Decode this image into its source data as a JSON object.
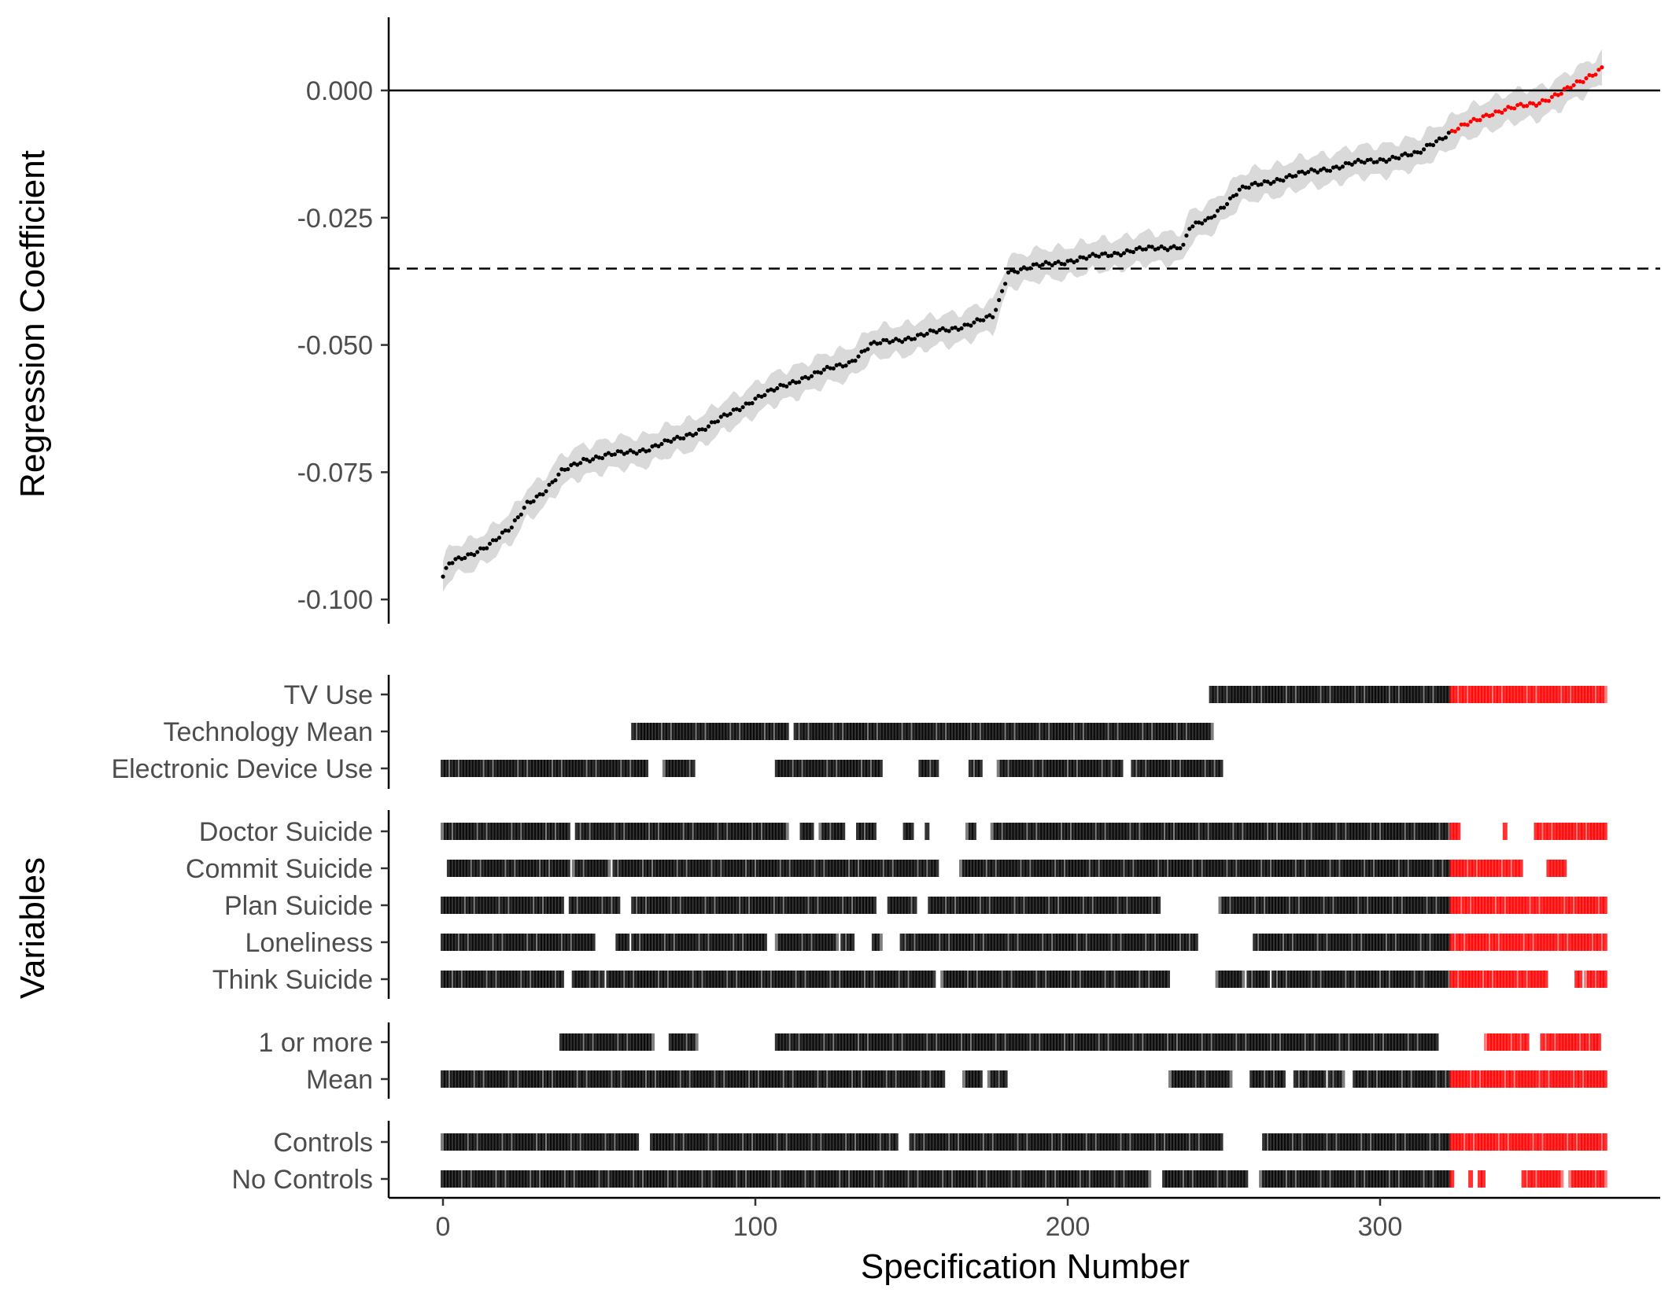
{
  "chart_data": {
    "type": "scatter",
    "title": "",
    "xlabel": "Specification Number",
    "x_ticks": [
      0,
      100,
      200,
      300
    ],
    "xlim": [
      -18,
      391
    ],
    "n_specifications": 372,
    "coefficient_panel": {
      "ylabel": "Regression Coefficient",
      "y_ticks": [
        "0.000",
        "-0.025",
        "-0.050",
        "-0.075",
        "-0.100"
      ],
      "y_tick_values": [
        0.0,
        -0.025,
        -0.05,
        -0.075,
        -0.1
      ],
      "ylim": [
        -0.105,
        0.014
      ],
      "reference_line_solid": 0.0,
      "reference_line_dashed": -0.035,
      "ci_halfwidth_approx": 0.003,
      "curve_knots": [
        [
          0,
          -0.0955
        ],
        [
          2,
          -0.093
        ],
        [
          8,
          -0.0915
        ],
        [
          15,
          -0.089
        ],
        [
          22,
          -0.086
        ],
        [
          27,
          -0.081
        ],
        [
          33,
          -0.0785
        ],
        [
          38,
          -0.075
        ],
        [
          45,
          -0.0725
        ],
        [
          55,
          -0.0715
        ],
        [
          65,
          -0.0705
        ],
        [
          75,
          -0.0685
        ],
        [
          85,
          -0.066
        ],
        [
          100,
          -0.0605
        ],
        [
          115,
          -0.0565
        ],
        [
          130,
          -0.0535
        ],
        [
          137,
          -0.05
        ],
        [
          150,
          -0.0485
        ],
        [
          165,
          -0.0465
        ],
        [
          176,
          -0.0445
        ],
        [
          178,
          -0.0415
        ],
        [
          181,
          -0.0355
        ],
        [
          200,
          -0.0335
        ],
        [
          220,
          -0.0315
        ],
        [
          237,
          -0.0305
        ],
        [
          239,
          -0.027
        ],
        [
          245,
          -0.0255
        ],
        [
          250,
          -0.0225
        ],
        [
          255,
          -0.0195
        ],
        [
          270,
          -0.017
        ],
        [
          290,
          -0.0145
        ],
        [
          312,
          -0.0125
        ],
        [
          316,
          -0.0105
        ],
        [
          322,
          -0.0085
        ],
        [
          335,
          -0.0045
        ],
        [
          350,
          -0.0025
        ],
        [
          358,
          -0.0005
        ],
        [
          365,
          0.002
        ],
        [
          371,
          0.0045
        ],
        [
          372,
          0.005
        ]
      ],
      "highlight_from_spec": 323,
      "point_color": "#000000",
      "highlight_color": "#ff0000",
      "ci_color": "#d9d9d9"
    },
    "tile_panels": [
      {
        "label": "Variables",
        "rows": [
          {
            "name": "TV Use",
            "segments": [
              [
                246,
                372
              ]
            ]
          },
          {
            "name": "Technology Mean",
            "segments": [
              [
                61,
                110
              ],
              [
                113,
                246
              ]
            ]
          },
          {
            "name": "Electronic Device Use",
            "segments": [
              [
                0,
                65
              ],
              [
                71,
                80
              ],
              [
                107,
                140
              ],
              [
                153,
                158
              ],
              [
                169,
                172
              ],
              [
                178,
                217
              ],
              [
                221,
                249
              ]
            ]
          }
        ]
      },
      {
        "label": "",
        "rows": [
          {
            "name": "Doctor Suicide",
            "segments": [
              [
                0,
                40
              ],
              [
                43,
                54
              ],
              [
                55,
                110
              ],
              [
                115,
                118
              ],
              [
                121,
                128
              ],
              [
                133,
                138
              ],
              [
                148,
                150
              ],
              [
                155,
                155
              ],
              [
                168,
                170
              ],
              [
                176,
                372
              ]
            ],
            "exclude": [
              [
                326,
                339
              ],
              [
                341,
                349
              ]
            ]
          },
          {
            "name": "Commit Suicide",
            "segments": [
              [
                2,
                40
              ],
              [
                42,
                53
              ],
              [
                55,
                158
              ],
              [
                166,
                359
              ]
            ],
            "exclude": [
              [
                346,
                353
              ]
            ]
          },
          {
            "name": "Plan Suicide",
            "segments": [
              [
                0,
                38
              ],
              [
                41,
                56
              ],
              [
                61,
                138
              ],
              [
                143,
                151
              ],
              [
                156,
                229
              ],
              [
                249,
                372
              ]
            ]
          },
          {
            "name": "Loneliness",
            "segments": [
              [
                0,
                48
              ],
              [
                56,
                59
              ],
              [
                61,
                103
              ],
              [
                107,
                126
              ],
              [
                128,
                131
              ],
              [
                138,
                140
              ],
              [
                147,
                241
              ],
              [
                260,
                372
              ]
            ]
          },
          {
            "name": "Think Suicide",
            "segments": [
              [
                0,
                38
              ],
              [
                42,
                51
              ],
              [
                53,
                157
              ],
              [
                157,
                157
              ],
              [
                160,
                232
              ],
              [
                248,
                256
              ],
              [
                258,
                264
              ],
              [
                266,
                372
              ]
            ],
            "exclude": [
              [
                354,
                362
              ],
              [
                365,
                365
              ]
            ]
          }
        ]
      },
      {
        "label": "",
        "rows": [
          {
            "name": "1 or more",
            "segments": [
              [
                38,
                67
              ],
              [
                73,
                81
              ],
              [
                107,
                318
              ],
              [
                334,
                370
              ]
            ],
            "exclude": [
              [
                348,
                351
              ]
            ]
          },
          {
            "name": "Mean",
            "segments": [
              [
                0,
                160
              ],
              [
                167,
                172
              ],
              [
                175,
                180
              ],
              [
                233,
                252
              ],
              [
                259,
                269
              ],
              [
                273,
                282
              ],
              [
                284,
                288
              ],
              [
                292,
                372
              ]
            ]
          }
        ]
      },
      {
        "label": "",
        "rows": [
          {
            "name": "Controls",
            "segments": [
              [
                0,
                62
              ],
              [
                67,
                145
              ],
              [
                150,
                249
              ],
              [
                263,
                372
              ]
            ]
          },
          {
            "name": "No Controls",
            "segments": [
              [
                0,
                226
              ],
              [
                231,
                372
              ]
            ],
            "exclude": [
              [
                258,
                261
              ],
              [
                324,
                328
              ],
              [
                330,
                331
              ],
              [
                334,
                345
              ],
              [
                359,
                360
              ]
            ]
          }
        ]
      }
    ],
    "grid": false,
    "legend": "none"
  }
}
